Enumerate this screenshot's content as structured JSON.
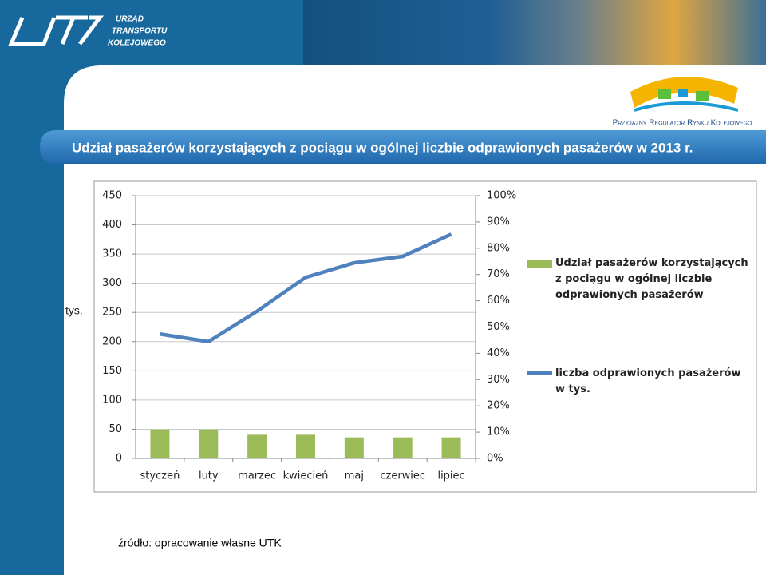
{
  "logo": {
    "lines": [
      "URZĄD",
      "TRANSPORTU",
      "KOLEJOWEGO"
    ],
    "tagline": "Przyjazny Regulator Rynku Kolejowego"
  },
  "source": "źródło: opracowanie własne UTK",
  "chart_data": {
    "type": "combo",
    "title": "Udział pasażerów korzystających z pociągu w ogólnej liczbie odprawionych pasażerów w 2013 r.",
    "ylabel": "tys.",
    "categories": [
      "styczeń",
      "luty",
      "marzec",
      "kwiecień",
      "maj",
      "czerwiec",
      "lipiec"
    ],
    "series": [
      {
        "name": "Udział pasażerów korzystających z pociągu w ogólnej liczbie odprawionych pasażerów",
        "type": "bar",
        "axis": "y2",
        "color": "#9bbb59",
        "values": [
          11,
          11,
          9,
          9,
          8,
          8,
          8
        ]
      },
      {
        "name": "liczba odprawionych pasażerów w tys.",
        "type": "line",
        "color": "#4f81bd",
        "values": [
          213,
          200,
          252,
          310,
          335,
          346,
          384
        ]
      }
    ],
    "ylim": [
      0,
      450
    ],
    "yticks": [
      0,
      50,
      100,
      150,
      200,
      250,
      300,
      350,
      400,
      450
    ],
    "y2lim": [
      0,
      100
    ],
    "y2ticks": [
      {
        "value": 0,
        "label": "0%"
      },
      {
        "value": 10,
        "label": "10%"
      },
      {
        "value": 20,
        "label": "20%"
      },
      {
        "value": 30,
        "label": "30%"
      },
      {
        "value": 40,
        "label": "40%"
      },
      {
        "value": 50,
        "label": "50%"
      },
      {
        "value": 60,
        "label": "60%"
      },
      {
        "value": 70,
        "label": "70%"
      },
      {
        "value": 80,
        "label": "80%"
      },
      {
        "value": 90,
        "label": "90%"
      },
      {
        "value": 100,
        "label": "100%"
      }
    ],
    "grid": true
  }
}
